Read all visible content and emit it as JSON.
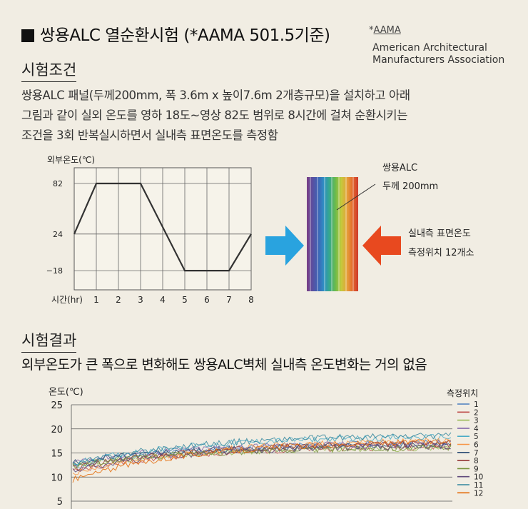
{
  "header": {
    "title": "쌍용ALC 열순환시험 (*AAMA 501.5기준)",
    "aama_star": "*",
    "aama_abbr": "AAMA",
    "aama_full_line1": "American Architectural",
    "aama_full_line2": "Manufacturers Association"
  },
  "conditions": {
    "title": "시험조건",
    "desc_line1": "쌍용ALC 패널(두께200mm, 폭 3.6m x 높이7.6m 2개층규모)을 설치하고 아래",
    "desc_line2": "그림과 같이 실외 온도를 영하 18도~영상 82도 범위로 8시간에 걸쳐 순환시키는",
    "desc_line3": "조건을 3회 반복실시하면서 실내측 표면온도를 측정함"
  },
  "diagram": {
    "panel_label1": "쌍용ALC",
    "panel_label2": "두께 200mm",
    "sensor_label1": "실내측 표면온도",
    "sensor_label2": "측정위치 12개소",
    "arrow_left_color": "#29a3df",
    "arrow_right_color": "#e8491f"
  },
  "results": {
    "title": "시험결과",
    "desc": "외부온도가 큰 폭으로 변화해도 쌍용ALC벽체 실내측 온도변화는 거의 없음"
  },
  "chart_data": [
    {
      "type": "line",
      "ylabel": "외부온도(℃)",
      "xlabel": "시간(hr)",
      "x_ticks": [
        1,
        2,
        3,
        4,
        5,
        6,
        7,
        8
      ],
      "y_ticks": [
        82,
        24,
        -18
      ],
      "xlim": [
        0,
        8
      ],
      "ylim": [
        -40,
        100
      ],
      "grid": true,
      "x": [
        0,
        1,
        3,
        5,
        7,
        8
      ],
      "y": [
        24,
        82,
        82,
        -18,
        -18,
        24
      ]
    },
    {
      "type": "line",
      "ylabel": "온도(℃)",
      "ylim": [
        5,
        25
      ],
      "y_ticks": [
        25,
        20,
        15,
        10,
        5
      ],
      "legend_title": "측정위치",
      "legend_position": "right",
      "grid": true,
      "x_range": [
        0,
        1
      ],
      "series": [
        {
          "name": "1",
          "color": "#4a7fc0",
          "start": 12.0,
          "end": 17.2
        },
        {
          "name": "2",
          "color": "#c0504d",
          "start": 11.2,
          "end": 16.3
        },
        {
          "name": "3",
          "color": "#9bbb59",
          "start": 12.5,
          "end": 16.0
        },
        {
          "name": "4",
          "color": "#7f62a8",
          "start": 13.2,
          "end": 17.0
        },
        {
          "name": "5",
          "color": "#4bacc6",
          "start": 12.8,
          "end": 18.3
        },
        {
          "name": "6",
          "color": "#f79646",
          "start": 10.5,
          "end": 17.5
        },
        {
          "name": "7",
          "color": "#2c4d75",
          "start": 13.0,
          "end": 16.6
        },
        {
          "name": "8",
          "color": "#943634",
          "start": 11.8,
          "end": 16.9
        },
        {
          "name": "9",
          "color": "#77933c",
          "start": 12.2,
          "end": 16.1
        },
        {
          "name": "10",
          "color": "#604a7b",
          "start": 11.5,
          "end": 16.4
        },
        {
          "name": "11",
          "color": "#31859c",
          "start": 12.6,
          "end": 18.6
        },
        {
          "name": "12",
          "color": "#e46c0a",
          "start": 9.4,
          "end": 17.3
        }
      ]
    }
  ]
}
